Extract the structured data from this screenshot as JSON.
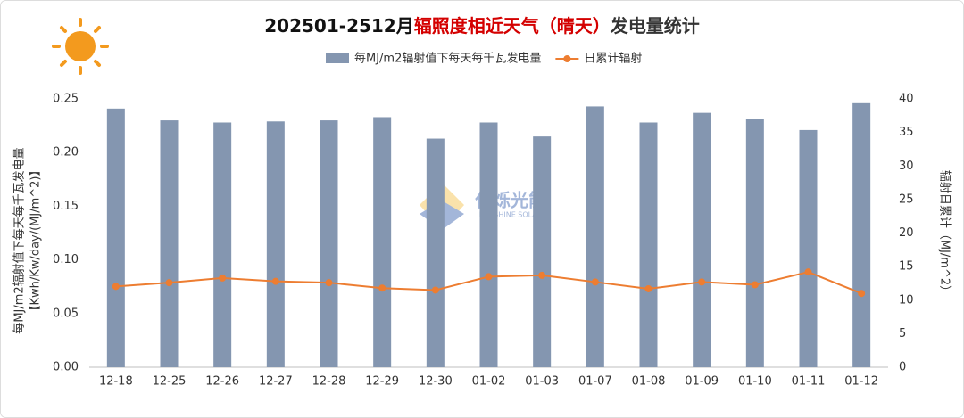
{
  "chart_data": {
    "type": "bar_line",
    "title": [
      "202501-2512月",
      "辐照度相近天气（晴天）",
      "发电量统计"
    ],
    "categories": [
      "12-18",
      "12-25",
      "12-26",
      "12-27",
      "12-28",
      "12-29",
      "12-30",
      "01-02",
      "01-03",
      "01-07",
      "01-08",
      "01-09",
      "01-10",
      "01-11",
      "01-12"
    ],
    "series": [
      {
        "name": "每MJ/m2辐射值下每天每千瓦发电量",
        "type": "bar",
        "color": "#8496b0",
        "values": [
          0.241,
          0.23,
          0.228,
          0.229,
          0.23,
          0.233,
          0.213,
          0.228,
          0.215,
          0.243,
          0.228,
          0.237,
          0.231,
          0.221,
          0.246
        ]
      },
      {
        "name": "日累计辐射",
        "type": "line",
        "axis": "y2",
        "color": "#ed7d31",
        "values": [
          12.05,
          12.6,
          13.3,
          12.8,
          12.6,
          11.8,
          11.5,
          13.5,
          13.7,
          12.7,
          11.7,
          12.7,
          12.3,
          14.2,
          11.0
        ]
      }
    ],
    "ylabel": [
      "每MJ/m2辐射值下每天每千瓦发电量",
      "【Kwh/Kw/day/(MJ/m^2)】"
    ],
    "y2label": "辐射日累计（MJ/m^2）",
    "ylim": [
      0,
      0.25
    ],
    "yticks": [
      {
        "value": 0,
        "label": "0.00"
      },
      0.05,
      {
        "value": 0.1,
        "label": "0.10"
      },
      0.15,
      {
        "value": 0.2,
        "label": "0.20"
      },
      0.25
    ],
    "y2lim": [
      0,
      40
    ],
    "y2ticks": [
      0,
      5,
      10,
      15,
      20,
      25,
      30,
      35,
      40
    ],
    "watermark": [
      "仁烁光能",
      "RENSHINE SOLAR"
    ]
  }
}
